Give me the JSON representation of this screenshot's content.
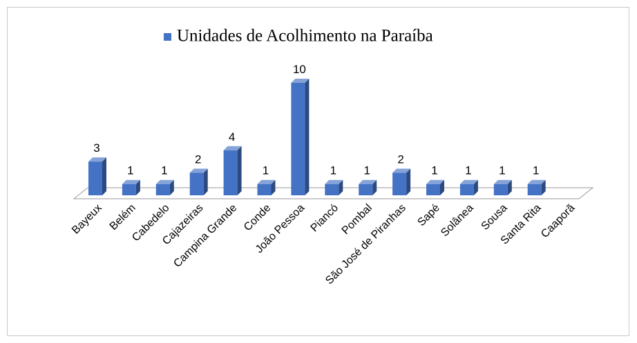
{
  "chart_data": {
    "type": "bar3d",
    "series": [
      {
        "name": "Unidades de Acolhimento na Paraíba",
        "color": "#4472c4",
        "values": [
          3,
          1,
          1,
          2,
          4,
          1,
          10,
          1,
          1,
          2,
          1,
          1,
          1,
          1,
          null
        ]
      }
    ],
    "categories": [
      "Bayeux",
      "Belém",
      "Cabedelo",
      "Cajazeiras",
      "Campina Grande",
      "Conde",
      "João Pessoa",
      "Piancó",
      "Pombal",
      "São José de Piranhas",
      "Sapé",
      "Solânea",
      "Sousa",
      "Santa Rita",
      "Caaporã"
    ]
  }
}
